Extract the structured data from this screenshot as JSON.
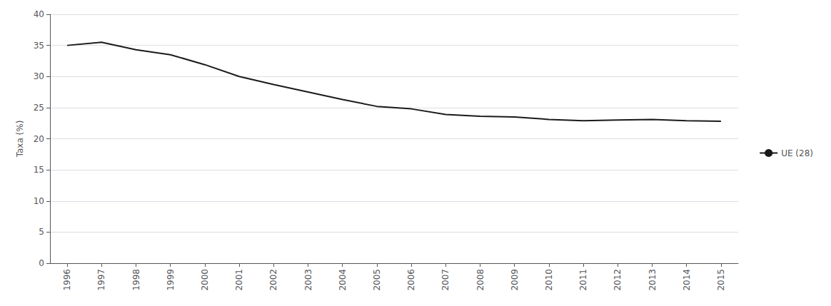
{
  "chart_data": {
    "type": "line",
    "x": [
      1996,
      1997,
      1998,
      1999,
      2000,
      2001,
      2002,
      2003,
      2004,
      2005,
      2006,
      2007,
      2008,
      2009,
      2010,
      2011,
      2012,
      2013,
      2014,
      2015
    ],
    "series": [
      {
        "name": "UE (28)",
        "color": "#1a1a1a",
        "values": [
          35.0,
          35.5,
          34.3,
          33.5,
          31.9,
          30.0,
          28.7,
          27.5,
          26.3,
          25.2,
          24.8,
          23.9,
          23.6,
          23.5,
          23.1,
          22.9,
          23.0,
          23.1,
          22.9,
          22.8
        ]
      }
    ],
    "ylabel": "Taxa (%)",
    "xlim": [
      1995.5,
      2015.5
    ],
    "xticks": [
      1996,
      1997,
      1998,
      1999,
      2000,
      2001,
      2002,
      2003,
      2004,
      2005,
      2006,
      2007,
      2008,
      2009,
      2010,
      2011,
      2012,
      2013,
      2014,
      2015
    ],
    "ylim": [
      0,
      40
    ],
    "yticks": [
      0,
      5,
      10,
      15,
      20,
      25,
      30,
      35,
      40
    ],
    "grid": true,
    "legend": "right"
  }
}
